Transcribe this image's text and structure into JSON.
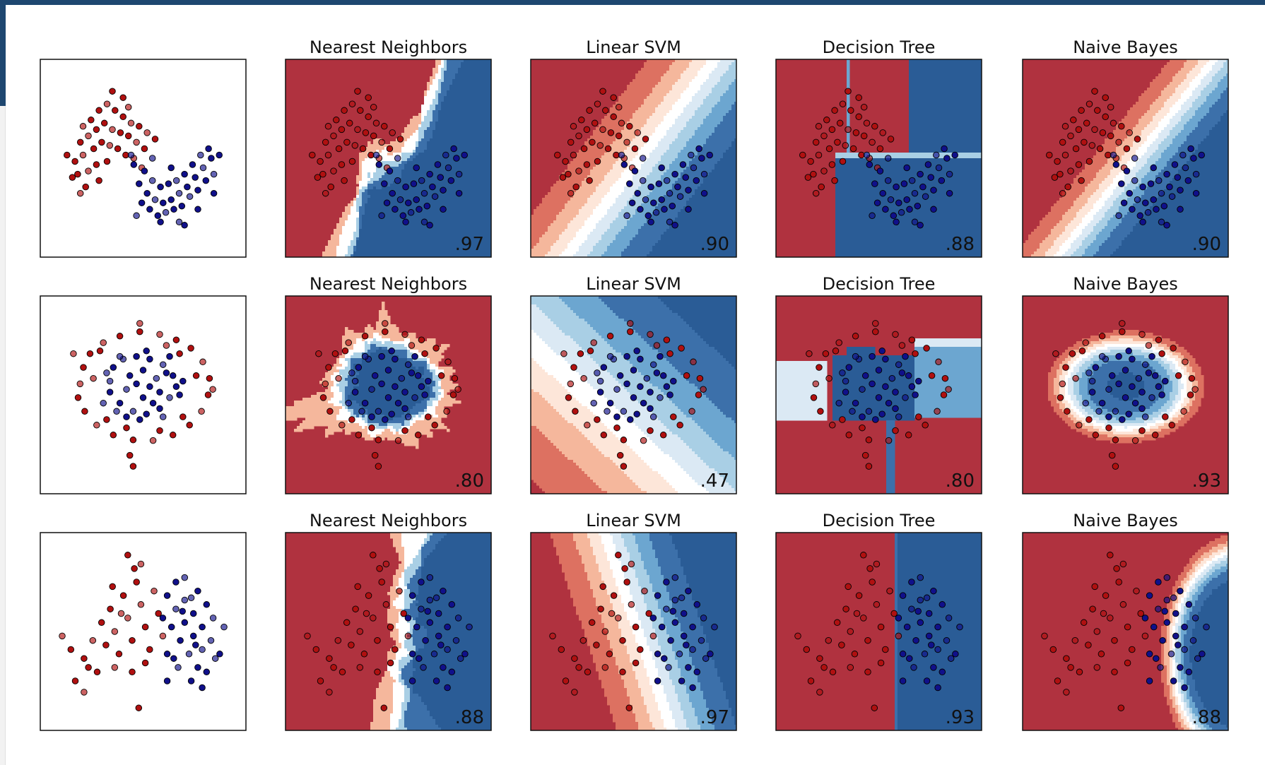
{
  "colors": {
    "red": "#b0323f",
    "blue": "#3c70aa",
    "red_point": "#b01010",
    "blue_point": "#10108a",
    "contour_levels": [
      "#b0323f",
      "#dd7161",
      "#f5b79c",
      "#fde6d9",
      "#ffffff",
      "#dbe9f4",
      "#a9cfe5",
      "#6ca6d0",
      "#3c70aa",
      "#2a5c96"
    ]
  },
  "chart_data": [
    {
      "type": "scatter",
      "row": 0,
      "col": 0,
      "title": "",
      "score": "",
      "datasets": "moons"
    },
    {
      "type": "heatmap",
      "row": 0,
      "col": 1,
      "title": "Nearest Neighbors",
      "score": ".97",
      "classifier": "knn",
      "dataset": "moons"
    },
    {
      "type": "heatmap",
      "row": 0,
      "col": 2,
      "title": "Linear SVM",
      "score": ".90",
      "classifier": "linear",
      "dataset": "moons"
    },
    {
      "type": "heatmap",
      "row": 0,
      "col": 3,
      "title": "Decision Tree",
      "score": ".88",
      "classifier": "tree",
      "dataset": "moons"
    },
    {
      "type": "heatmap",
      "row": 0,
      "col": 4,
      "title": "Naive Bayes",
      "score": ".90",
      "classifier": "nb",
      "dataset": "moons"
    },
    {
      "type": "scatter",
      "row": 1,
      "col": 0,
      "title": "",
      "score": "",
      "dataset": "circles"
    },
    {
      "type": "heatmap",
      "row": 1,
      "col": 1,
      "title": "Nearest Neighbors",
      "score": ".80",
      "classifier": "knn",
      "dataset": "circles"
    },
    {
      "type": "heatmap",
      "row": 1,
      "col": 2,
      "title": "Linear SVM",
      "score": ".47",
      "classifier": "linear",
      "dataset": "circles"
    },
    {
      "type": "heatmap",
      "row": 1,
      "col": 3,
      "title": "Decision Tree",
      "score": ".80",
      "classifier": "tree",
      "dataset": "circles"
    },
    {
      "type": "heatmap",
      "row": 1,
      "col": 4,
      "title": "Naive Bayes",
      "score": ".93",
      "classifier": "nb",
      "dataset": "circles"
    },
    {
      "type": "scatter",
      "row": 2,
      "col": 0,
      "title": "",
      "score": "",
      "dataset": "linear"
    },
    {
      "type": "heatmap",
      "row": 2,
      "col": 1,
      "title": "Nearest Neighbors",
      "score": ".88",
      "classifier": "knn",
      "dataset": "linear"
    },
    {
      "type": "heatmap",
      "row": 2,
      "col": 2,
      "title": "Linear SVM",
      "score": ".97",
      "classifier": "linear",
      "dataset": "linear"
    },
    {
      "type": "heatmap",
      "row": 2,
      "col": 3,
      "title": "Decision Tree",
      "score": ".93",
      "classifier": "tree",
      "dataset": "linear"
    },
    {
      "type": "heatmap",
      "row": 2,
      "col": 4,
      "title": "Naive Bayes",
      "score": ".88",
      "classifier": "nb",
      "dataset": "linear"
    }
  ],
  "datasets": {
    "moons": [
      [
        -0.85,
        0.95,
        0
      ],
      [
        -0.7,
        1.05,
        0
      ],
      [
        -0.55,
        1.2,
        0
      ],
      [
        -0.4,
        1.3,
        0
      ],
      [
        -0.25,
        1.2,
        0
      ],
      [
        -0.1,
        1.1,
        0
      ],
      [
        0.05,
        1.0,
        0
      ],
      [
        0.2,
        0.95,
        0
      ],
      [
        -0.9,
        0.7,
        0
      ],
      [
        -0.75,
        0.8,
        0
      ],
      [
        -0.6,
        0.9,
        0
      ],
      [
        -0.45,
        1.0,
        0
      ],
      [
        -0.3,
        0.9,
        0
      ],
      [
        -0.15,
        0.85,
        0
      ],
      [
        0.0,
        0.8,
        0
      ],
      [
        0.15,
        0.7,
        0
      ],
      [
        0.3,
        0.6,
        0
      ],
      [
        -1.0,
        0.4,
        0
      ],
      [
        -0.85,
        0.5,
        0
      ],
      [
        -0.65,
        0.6,
        0
      ],
      [
        -0.5,
        0.7,
        0
      ],
      [
        -0.35,
        0.65,
        0
      ],
      [
        -0.2,
        0.6,
        0
      ],
      [
        -0.05,
        0.5,
        0
      ],
      [
        0.1,
        0.45,
        0
      ],
      [
        -1.05,
        0.15,
        0
      ],
      [
        -0.95,
        0.2,
        0
      ],
      [
        -0.75,
        0.25,
        0
      ],
      [
        -0.6,
        0.35,
        0
      ],
      [
        -0.4,
        0.4,
        0
      ],
      [
        0.25,
        0.3,
        0
      ],
      [
        -0.1,
        1.4,
        0
      ],
      [
        -0.3,
        1.5,
        0
      ],
      [
        -0.9,
        -0.1,
        0
      ],
      [
        -0.8,
        0.0,
        0
      ],
      [
        -0.55,
        0.1,
        0
      ],
      [
        0.35,
        0.85,
        0
      ],
      [
        0.5,
        0.75,
        0
      ],
      [
        -1.15,
        0.5,
        0
      ],
      [
        0.0,
        1.25,
        0
      ],
      [
        0.2,
        0.05,
        1
      ],
      [
        0.35,
        -0.1,
        1
      ],
      [
        0.5,
        -0.2,
        1
      ],
      [
        0.65,
        -0.25,
        1
      ],
      [
        0.8,
        -0.2,
        1
      ],
      [
        0.95,
        -0.1,
        1
      ],
      [
        1.1,
        0.0,
        1
      ],
      [
        1.25,
        0.15,
        1
      ],
      [
        1.4,
        0.3,
        1
      ],
      [
        1.55,
        0.45,
        1
      ],
      [
        0.3,
        0.25,
        1
      ],
      [
        0.45,
        0.1,
        1
      ],
      [
        0.6,
        0.0,
        1
      ],
      [
        0.75,
        0.05,
        1
      ],
      [
        0.9,
        0.1,
        1
      ],
      [
        1.05,
        0.2,
        1
      ],
      [
        1.2,
        0.35,
        1
      ],
      [
        1.35,
        0.5,
        1
      ],
      [
        1.5,
        0.6,
        1
      ],
      [
        0.1,
        0.35,
        1
      ],
      [
        0.05,
        0.5,
        1
      ],
      [
        0.4,
        -0.35,
        1
      ],
      [
        0.55,
        -0.45,
        1
      ],
      [
        0.7,
        -0.4,
        1
      ],
      [
        0.85,
        -0.35,
        1
      ],
      [
        1.0,
        -0.3,
        1
      ],
      [
        1.15,
        -0.15,
        1
      ],
      [
        1.3,
        -0.05,
        1
      ],
      [
        1.45,
        0.1,
        1
      ],
      [
        1.6,
        0.2,
        1
      ],
      [
        0.25,
        -0.25,
        1
      ],
      [
        0.6,
        -0.55,
        1
      ],
      [
        0.95,
        -0.55,
        1
      ],
      [
        1.3,
        -0.35,
        1
      ],
      [
        1.6,
        -0.1,
        1
      ],
      [
        0.45,
        0.45,
        1
      ],
      [
        0.8,
        0.3,
        1
      ],
      [
        1.7,
        0.5,
        1
      ],
      [
        0.15,
        -0.45,
        1
      ],
      [
        1.05,
        -0.6,
        1
      ]
    ],
    "circles": [
      [
        -0.95,
        0.05,
        0
      ],
      [
        -0.9,
        0.35,
        0
      ],
      [
        -0.8,
        0.6,
        0
      ],
      [
        -0.6,
        0.8,
        0
      ],
      [
        -0.35,
        0.92,
        0
      ],
      [
        -0.05,
        1.0,
        0
      ],
      [
        0.25,
        0.95,
        0
      ],
      [
        0.5,
        0.85,
        0
      ],
      [
        0.72,
        0.7,
        0
      ],
      [
        0.9,
        0.45,
        0
      ],
      [
        1.0,
        0.15,
        0
      ],
      [
        0.98,
        -0.15,
        0
      ],
      [
        0.88,
        -0.45,
        0
      ],
      [
        0.7,
        -0.7,
        0
      ],
      [
        0.45,
        -0.88,
        0
      ],
      [
        0.15,
        -0.98,
        0
      ],
      [
        -0.15,
        -0.97,
        0
      ],
      [
        -0.45,
        -0.88,
        0
      ],
      [
        -0.7,
        -0.7,
        0
      ],
      [
        -0.88,
        -0.45,
        0
      ],
      [
        -0.98,
        -0.2,
        0
      ],
      [
        -0.75,
        0.15,
        0
      ],
      [
        0.8,
        0.2,
        0
      ],
      [
        -0.25,
        -0.75,
        0
      ],
      [
        0.35,
        0.75,
        0
      ],
      [
        -0.55,
        -0.6,
        0
      ],
      [
        0.6,
        -0.55,
        0
      ],
      [
        -0.05,
        1.15,
        0
      ],
      [
        -0.2,
        -1.25,
        0
      ],
      [
        -0.15,
        -1.45,
        0
      ],
      [
        1.05,
        -0.05,
        0
      ],
      [
        -0.65,
        0.65,
        0
      ],
      [
        0.55,
        0.6,
        0
      ],
      [
        -1.05,
        0.6,
        0
      ],
      [
        0.25,
        -0.8,
        0
      ],
      [
        -0.45,
        0.35,
        1
      ],
      [
        -0.3,
        0.5,
        1
      ],
      [
        -0.1,
        0.55,
        1
      ],
      [
        0.1,
        0.5,
        1
      ],
      [
        0.3,
        0.4,
        1
      ],
      [
        0.45,
        0.2,
        1
      ],
      [
        0.5,
        0.0,
        1
      ],
      [
        0.4,
        -0.2,
        1
      ],
      [
        0.25,
        -0.4,
        1
      ],
      [
        0.05,
        -0.5,
        1
      ],
      [
        -0.15,
        -0.45,
        1
      ],
      [
        -0.35,
        -0.3,
        1
      ],
      [
        -0.5,
        -0.1,
        1
      ],
      [
        -0.5,
        0.1,
        1
      ],
      [
        -0.2,
        0.2,
        1
      ],
      [
        0.0,
        0.3,
        1
      ],
      [
        0.2,
        0.15,
        1
      ],
      [
        0.25,
        -0.1,
        1
      ],
      [
        0.0,
        -0.2,
        1
      ],
      [
        -0.25,
        -0.05,
        1
      ],
      [
        -0.1,
        0.05,
        1
      ],
      [
        0.1,
        0.0,
        1
      ],
      [
        -0.35,
        0.55,
        1
      ],
      [
        0.15,
        -0.3,
        1
      ],
      [
        0.35,
        0.25,
        1
      ],
      [
        -0.55,
        0.25,
        1
      ],
      [
        0.55,
        -0.15,
        1
      ],
      [
        -0.05,
        -0.6,
        1
      ],
      [
        -0.4,
        -0.45,
        1
      ],
      [
        0.4,
        0.55,
        1
      ],
      [
        0.6,
        0.1,
        1
      ],
      [
        -0.6,
        -0.3,
        1
      ],
      [
        0.05,
        0.65,
        1
      ],
      [
        -0.25,
        -0.55,
        1
      ],
      [
        0.3,
        -0.55,
        1
      ]
    ],
    "linear": [
      [
        -2.1,
        0.4,
        0
      ],
      [
        -1.9,
        0.1,
        0
      ],
      [
        -1.6,
        -0.1,
        0
      ],
      [
        -1.4,
        0.3,
        0
      ],
      [
        -1.2,
        0.7,
        0
      ],
      [
        -1.0,
        1.0,
        0
      ],
      [
        -0.9,
        0.5,
        0
      ],
      [
        -0.8,
        0.0,
        0
      ],
      [
        -0.7,
        1.3,
        0
      ],
      [
        -0.6,
        0.8,
        0
      ],
      [
        -0.5,
        0.3,
        0
      ],
      [
        -0.4,
        1.6,
        0
      ],
      [
        -0.3,
        1.1,
        0
      ],
      [
        -0.2,
        0.6,
        0
      ],
      [
        -0.1,
        0.1,
        0
      ],
      [
        0.0,
        1.4,
        0
      ],
      [
        0.1,
        0.9,
        0
      ],
      [
        -0.6,
        2.2,
        0
      ],
      [
        -0.3,
        2.0,
        0
      ],
      [
        -1.8,
        -0.6,
        0
      ],
      [
        -1.5,
        -0.3,
        0
      ],
      [
        -0.9,
        -0.3,
        0
      ],
      [
        -0.5,
        -0.4,
        0
      ],
      [
        -0.2,
        -0.2,
        0
      ],
      [
        0.2,
        0.4,
        0
      ],
      [
        -1.1,
        0.2,
        0
      ],
      [
        -1.3,
        -0.4,
        0
      ],
      [
        -0.75,
        0.9,
        0
      ],
      [
        -0.45,
        1.9,
        0
      ],
      [
        -0.95,
        1.5,
        0
      ],
      [
        -1.6,
        -0.85,
        0
      ],
      [
        -0.35,
        -1.2,
        0
      ],
      [
        0.3,
        1.3,
        1
      ],
      [
        0.5,
        1.0,
        1
      ],
      [
        0.7,
        0.7,
        1
      ],
      [
        0.9,
        0.4,
        1
      ],
      [
        1.1,
        0.1,
        1
      ],
      [
        0.4,
        0.6,
        1
      ],
      [
        0.6,
        0.3,
        1
      ],
      [
        0.8,
        0.0,
        1
      ],
      [
        1.0,
        -0.3,
        1
      ],
      [
        0.5,
        1.6,
        1
      ],
      [
        0.7,
        1.2,
        1
      ],
      [
        0.9,
        0.9,
        1
      ],
      [
        1.1,
        0.6,
        1
      ],
      [
        1.3,
        0.3,
        1
      ],
      [
        1.5,
        0.0,
        1
      ],
      [
        0.3,
        0.0,
        1
      ],
      [
        0.55,
        -0.3,
        1
      ],
      [
        0.85,
        -0.6,
        1
      ],
      [
        1.2,
        -0.4,
        1
      ],
      [
        1.4,
        -0.1,
        1
      ],
      [
        1.2,
        1.1,
        1
      ],
      [
        1.0,
        1.4,
        1
      ],
      [
        0.7,
        1.7,
        1
      ],
      [
        0.2,
        0.8,
        1
      ],
      [
        0.45,
        -0.1,
        1
      ],
      [
        1.6,
        0.6,
        1
      ],
      [
        0.95,
        0.2,
        1
      ],
      [
        0.65,
        0.95,
        1
      ],
      [
        1.35,
        0.8,
        1
      ],
      [
        0.3,
        -0.6,
        1
      ],
      [
        1.1,
        -0.75,
        1
      ],
      [
        0.85,
        1.25,
        1
      ]
    ]
  }
}
